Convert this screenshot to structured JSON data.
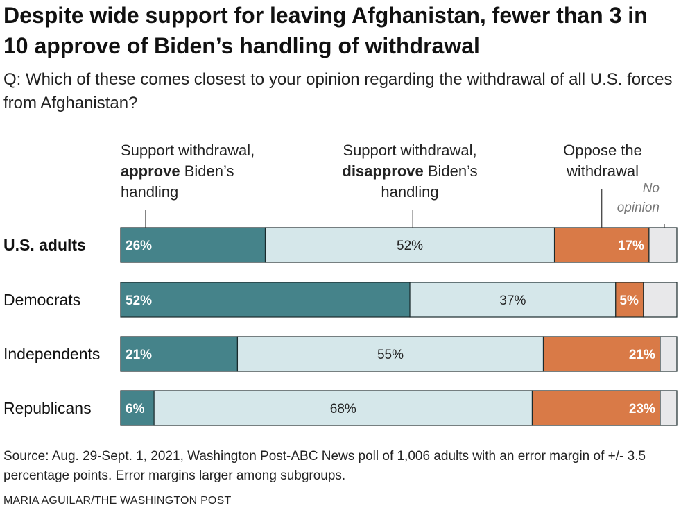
{
  "title": "Despite wide support for leaving Afghanistan, fewer than 3 in 10 approve of Biden’s handling of withdrawal",
  "question": "Q: Which of these comes closest to your opinion regarding the withdrawal of all U.S. forces from Afghanistan?",
  "source": "Source: Aug. 29-Sept. 1, 2021, Washington Post-ABC News poll of 1,006 adults with an error margin of +/- 3.5 percentage points. Error margins larger among subgroups.",
  "credit": "MARIA AGUILAR/THE WASHINGTON POST",
  "colors": {
    "approve": "#45838a",
    "disapprove": "#d5e7ea",
    "oppose": "#d97a47",
    "no_opinion": "#e8e8ea",
    "border": "#1a2a2c"
  },
  "chart_data": {
    "type": "bar",
    "stacked": true,
    "orientation": "horizontal",
    "categories": [
      "U.S. adults",
      "Democrats",
      "Independents",
      "Republicans"
    ],
    "category_emphasis": [
      "bold",
      "normal",
      "normal",
      "normal"
    ],
    "series": [
      {
        "name": "Support withdrawal, approve Biden’s handling",
        "legend_parts": [
          {
            "line": [
              "Support withdrawal,"
            ]
          },
          {
            "line": [
              "approve",
              " Biden’s"
            ],
            "bold_first": true
          },
          {
            "line": [
              "handling"
            ]
          }
        ],
        "values": [
          26,
          52,
          21,
          6
        ],
        "labels": [
          "26%",
          "52%",
          "21%",
          "6%"
        ]
      },
      {
        "name": "Support withdrawal, disapprove Biden’s handling",
        "legend_parts": [
          {
            "line": [
              "Support withdrawal,"
            ]
          },
          {
            "line": [
              "disapprove",
              " Biden’s"
            ],
            "bold_first": true
          },
          {
            "line": [
              "handling"
            ]
          }
        ],
        "values": [
          52,
          37,
          55,
          68
        ],
        "labels": [
          "52%",
          "37%",
          "55%",
          "68%"
        ]
      },
      {
        "name": "Oppose the withdrawal",
        "legend_parts": [
          {
            "line": [
              "Oppose the"
            ]
          },
          {
            "line": [
              "withdrawal"
            ]
          }
        ],
        "values": [
          17,
          5,
          21,
          23
        ],
        "labels": [
          "17%",
          "5%",
          "21%",
          "23%"
        ]
      },
      {
        "name": "No opinion",
        "legend_parts": [
          {
            "line": [
              "No"
            ]
          },
          {
            "line": [
              "opinion"
            ]
          }
        ],
        "values": [
          5,
          6,
          3,
          3
        ],
        "labels": [
          "",
          "",
          "",
          ""
        ]
      }
    ],
    "xlim": [
      0,
      100
    ]
  }
}
